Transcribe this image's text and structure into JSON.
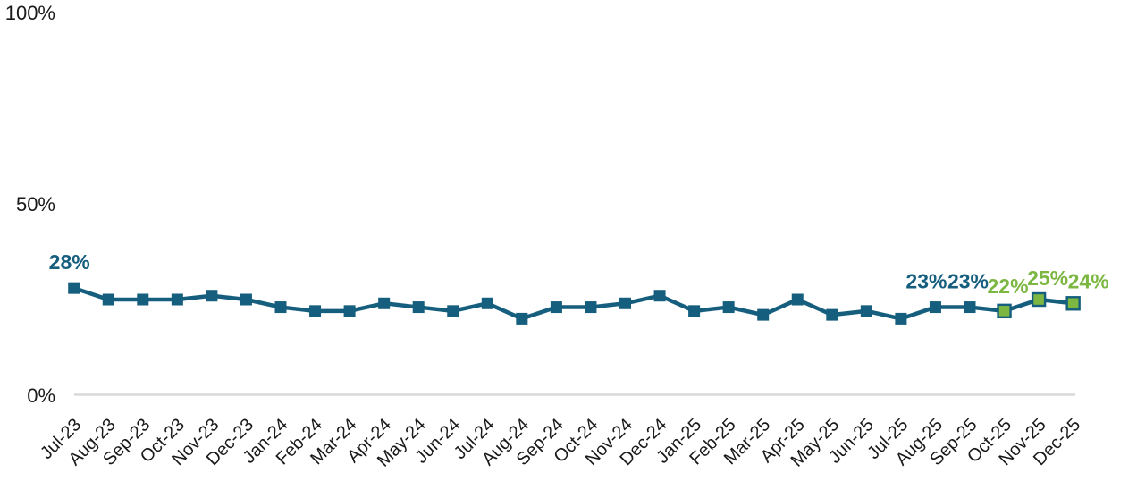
{
  "chart_data": {
    "type": "line",
    "title": "",
    "categories": [
      "Jul-23",
      "Aug-23",
      "Sep-23",
      "Oct-23",
      "Nov-23",
      "Dec-23",
      "Jan-24",
      "Feb-24",
      "Mar-24",
      "Apr-24",
      "May-24",
      "Jun-24",
      "Jul-24",
      "Aug-24",
      "Sep-24",
      "Oct-24",
      "Nov-24",
      "Dec-24",
      "Jan-25",
      "Feb-25",
      "Mar-25",
      "Apr-25",
      "May-25",
      "Jun-25",
      "Jul-25",
      "Aug-25",
      "Sep-25",
      "Oct-25",
      "Nov-25",
      "Dec-25"
    ],
    "values": [
      28,
      25,
      25,
      25,
      26,
      25,
      23,
      22,
      22,
      24,
      23,
      22,
      24,
      20,
      23,
      23,
      24,
      26,
      22,
      23,
      21,
      25,
      21,
      22,
      20,
      23,
      23,
      22,
      25,
      24
    ],
    "unit": "%",
    "ylim": [
      0,
      100
    ],
    "yticks": [
      {
        "label": "0%",
        "value": 0
      },
      {
        "label": "50%",
        "value": 50
      },
      {
        "label": "100%",
        "value": 100
      }
    ],
    "grid": "off",
    "legend": "none",
    "series": [
      {
        "name": "main-series",
        "line_color": "#155e7d",
        "marker": "square",
        "highlight_indices": [
          27,
          28,
          29
        ],
        "highlight_marker_fill": "#7cb742",
        "highlight_marker_border": "#155e7d"
      }
    ],
    "data_labels": [
      {
        "index": 0,
        "text": "28%",
        "color": "#155e7d"
      },
      {
        "index": 25,
        "text": "23%",
        "color": "#155e7d"
      },
      {
        "index": 26,
        "text": "23%",
        "color": "#155e7d"
      },
      {
        "index": 27,
        "text": "22%",
        "color": "#7cb742"
      },
      {
        "index": 28,
        "text": "25%",
        "color": "#7cb742"
      },
      {
        "index": 29,
        "text": "24%",
        "color": "#7cb742"
      }
    ],
    "colors": {
      "axis_line": "#d9d9d9",
      "tick_label": "#1a1a1a",
      "background": "#ffffff"
    }
  }
}
